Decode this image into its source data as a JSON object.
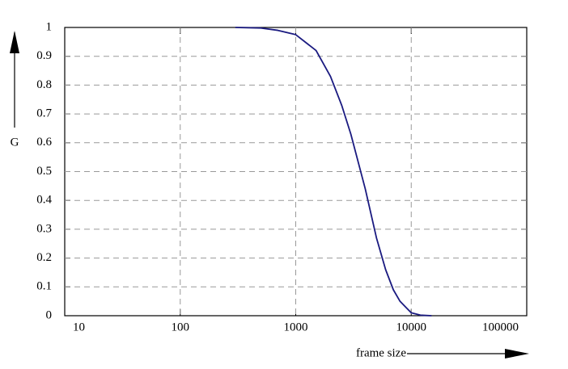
{
  "chart_data": {
    "type": "line",
    "x_label": "frame size",
    "y_label": "G",
    "xscale": "log",
    "xlim": [
      10,
      100000
    ],
    "xticks": [
      10,
      100,
      1000,
      10000,
      100000
    ],
    "ylim": [
      0,
      1
    ],
    "yticks": [
      0,
      0.1,
      0.2,
      0.3,
      0.4,
      0.5,
      0.6,
      0.7,
      0.8,
      0.9,
      1
    ],
    "grid": true,
    "series": [
      {
        "color": "#1a1a80",
        "x": [
          300,
          500,
          700,
          1000,
          1500,
          2000,
          2500,
          3000,
          4000,
          5000,
          6000,
          7000,
          8000,
          10000,
          12000,
          15000
        ],
        "values": [
          1,
          0.998,
          0.99,
          0.975,
          0.92,
          0.83,
          0.73,
          0.63,
          0.44,
          0.27,
          0.16,
          0.09,
          0.05,
          0.01,
          0.002,
          0
        ]
      }
    ]
  }
}
